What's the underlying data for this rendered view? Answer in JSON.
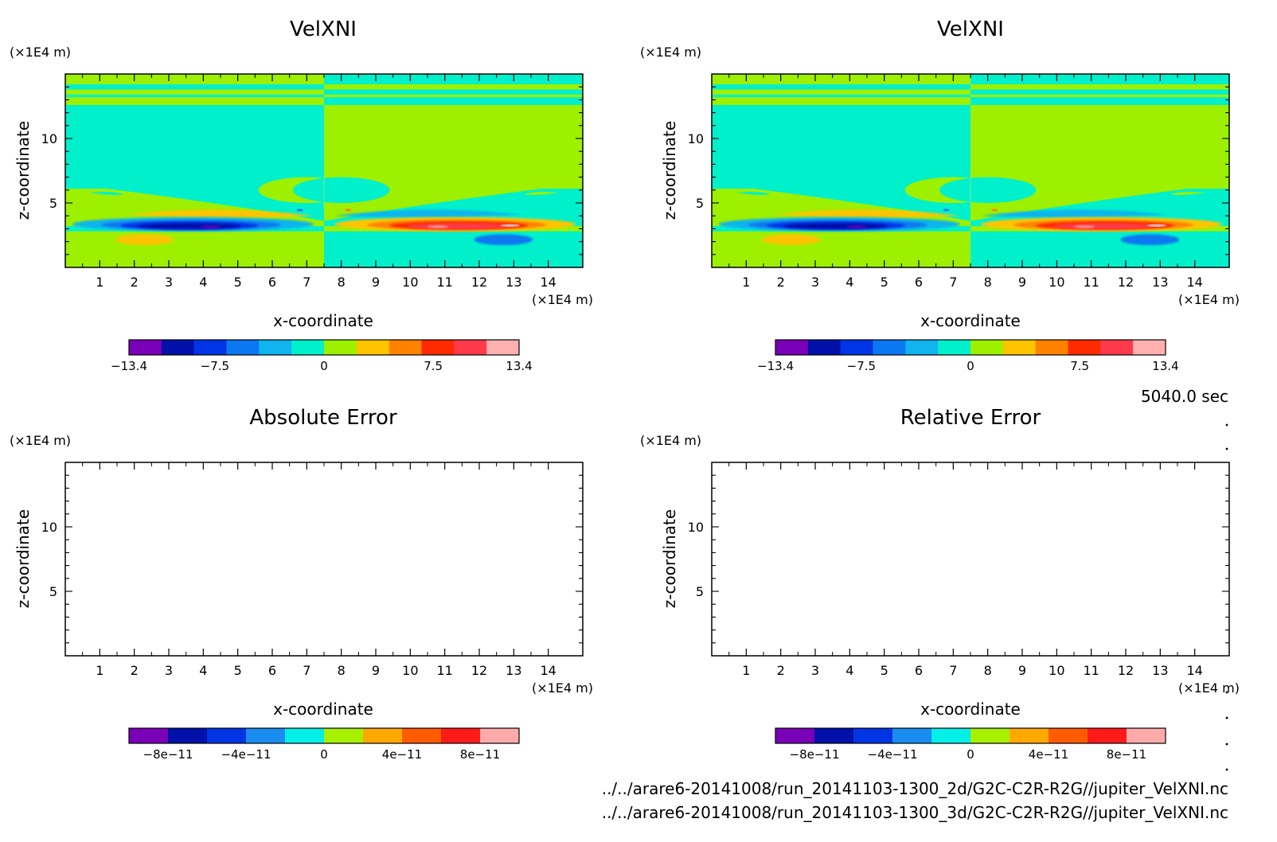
{
  "chart_data": [
    {
      "type": "heatmap",
      "title": "VelXNI",
      "xlabel": "x-coordinate",
      "ylabel": "z-coordinate",
      "x_unit": "(×1E4 m)",
      "y_unit": "(×1E4 m)",
      "x_ticks": [
        "1",
        "2",
        "3",
        "4",
        "5",
        "6",
        "7",
        "8",
        "9",
        "10",
        "11",
        "12",
        "13",
        "14"
      ],
      "y_ticks": [
        "5",
        "10"
      ],
      "xlim": [
        0,
        15
      ],
      "ylim": [
        0,
        15
      ],
      "colorbar": {
        "ticks": [
          "−13.4",
          "−7.5",
          "0",
          "7.5",
          "13.4"
        ],
        "range": [
          -13.4,
          13.4
        ]
      }
    },
    {
      "type": "heatmap",
      "title": "VelXNI",
      "xlabel": "x-coordinate",
      "ylabel": "z-coordinate",
      "x_unit": "(×1E4 m)",
      "y_unit": "(×1E4 m)",
      "x_ticks": [
        "1",
        "2",
        "3",
        "4",
        "5",
        "6",
        "7",
        "8",
        "9",
        "10",
        "11",
        "12",
        "13",
        "14"
      ],
      "y_ticks": [
        "5",
        "10"
      ],
      "xlim": [
        0,
        15
      ],
      "ylim": [
        0,
        15
      ],
      "colorbar": {
        "ticks": [
          "−13.4",
          "−7.5",
          "0",
          "7.5",
          "13.4"
        ],
        "range": [
          -13.4,
          13.4
        ]
      }
    },
    {
      "type": "heatmap",
      "title": "Absolute Error",
      "xlabel": "x-coordinate",
      "ylabel": "z-coordinate",
      "x_unit": "(×1E4 m)",
      "y_unit": "(×1E4 m)",
      "x_ticks": [
        "1",
        "2",
        "3",
        "4",
        "5",
        "6",
        "7",
        "8",
        "9",
        "10",
        "11",
        "12",
        "13",
        "14"
      ],
      "y_ticks": [
        "5",
        "10"
      ],
      "xlim": [
        0,
        15
      ],
      "ylim": [
        0,
        15
      ],
      "colorbar": {
        "ticks": [
          "−8e−11",
          "−4e−11",
          "0",
          "4e−11",
          "8e−11"
        ],
        "range": [
          -1e-10,
          1e-10
        ]
      }
    },
    {
      "type": "heatmap",
      "title": "Relative Error",
      "xlabel": "x-coordinate",
      "ylabel": "z-coordinate",
      "x_unit": "(×1E4 m)",
      "y_unit": "(×1E4 m)",
      "x_ticks": [
        "1",
        "2",
        "3",
        "4",
        "5",
        "6",
        "7",
        "8",
        "9",
        "10",
        "11",
        "12",
        "13",
        "14"
      ],
      "y_ticks": [
        "5",
        "10"
      ],
      "xlim": [
        0,
        15
      ],
      "ylim": [
        0,
        15
      ],
      "colorbar": {
        "ticks": [
          "−8e−11",
          "−4e−11",
          "0",
          "4e−11",
          "8e−11"
        ],
        "range": [
          -1e-10,
          1e-10
        ]
      }
    }
  ],
  "colors": {
    "velocity_scale": [
      "#7a00b8",
      "#0010a8",
      "#0035e6",
      "#0a78f0",
      "#10b4ee",
      "#00f0cc",
      "#9cf000",
      "#ffc400",
      "#ff8200",
      "#ff2a00",
      "#ff3a4a",
      "#ffb0b0"
    ],
    "error_scale": [
      "#7a00b8",
      "#0010a8",
      "#0035e6",
      "#1a8cf0",
      "#00f0e8",
      "#a8f000",
      "#ffa800",
      "#ff5c00",
      "#ff1a1a",
      "#ffaaaa"
    ],
    "background_negative": "#00f0cc",
    "background_positive": "#9cf000"
  },
  "time_label": "5040.0 sec",
  "footer": {
    "file1": "../../arare6-20141008/run_20141103-1300_2d/G2C-C2R-R2G//jupiter_VelXNI.nc",
    "file2": "../../arare6-20141008/run_20141103-1300_3d/G2C-C2R-R2G//jupiter_VelXNI.nc"
  }
}
